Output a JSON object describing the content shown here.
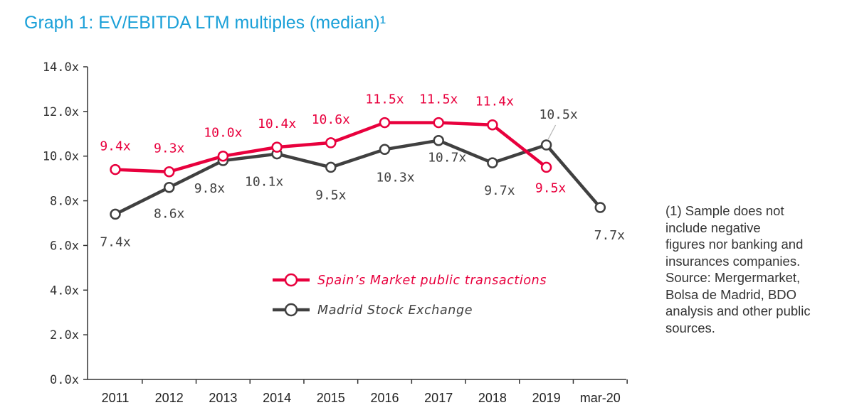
{
  "title": "Graph 1: EV/EBITDA LTM multiples (median)¹",
  "footnote": {
    "lines": [
      "(1) Sample does not",
      "include negative",
      "figures nor banking and",
      "insurances companies.",
      "Source: Mergermarket,",
      "Bolsa de Madrid, BDO",
      "analysis and other public",
      "sources."
    ]
  },
  "chart_data": {
    "type": "line",
    "categories": [
      "2011",
      "2012",
      "2013",
      "2014",
      "2015",
      "2016",
      "2017",
      "2018",
      "2019",
      "mar-20"
    ],
    "ylim": [
      0,
      14
    ],
    "yticks": [
      0,
      2,
      4,
      6,
      8,
      10,
      12,
      14
    ],
    "ytick_labels": [
      "0.0x",
      "2.0x",
      "4.0x",
      "6.0x",
      "8.0x",
      "10.0x",
      "12.0x",
      "14.0x"
    ],
    "xlabel": "",
    "ylabel": "",
    "grid": false,
    "legend_position": "center",
    "series": [
      {
        "name": "Spain’s Market public transactions",
        "color": "#e8003d",
        "values": [
          9.4,
          9.3,
          10.0,
          10.4,
          10.6,
          11.5,
          11.5,
          11.4,
          9.5,
          null
        ],
        "labels": [
          "9.4x",
          "9.3x",
          "10.0x",
          "10.4x",
          "10.6x",
          "11.5x",
          "11.5x",
          "11.4x",
          "9.5x",
          null
        ]
      },
      {
        "name": "Madrid Stock Exchange",
        "color": "#404040",
        "values": [
          7.4,
          8.6,
          9.8,
          10.1,
          9.5,
          10.3,
          10.7,
          9.7,
          10.5,
          7.7
        ],
        "labels": [
          "7.4x",
          "8.6x",
          "9.8x",
          "10.1x",
          "9.5x",
          "10.3x",
          "10.7x",
          "9.7x",
          "10.5x",
          "7.7x"
        ]
      }
    ]
  }
}
